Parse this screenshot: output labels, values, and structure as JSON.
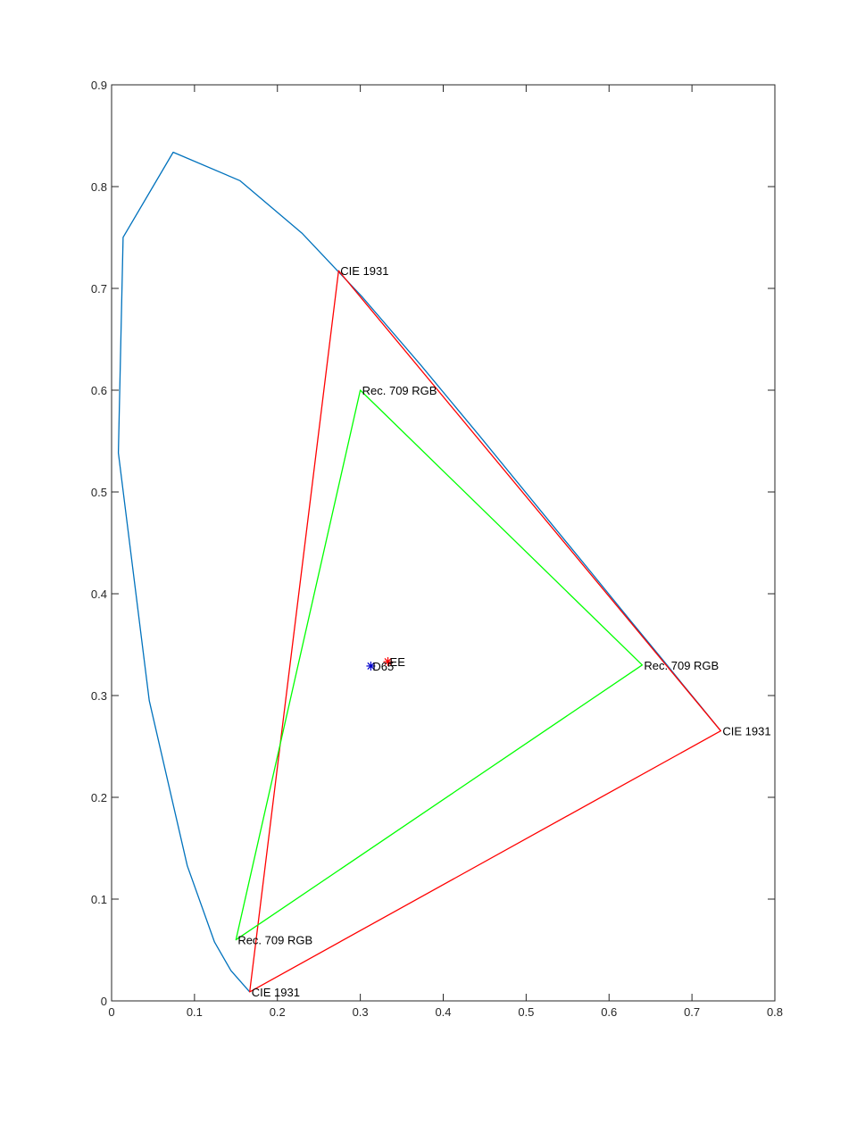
{
  "chart_data": {
    "type": "line",
    "title": "",
    "xlabel": "",
    "ylabel": "",
    "xlim": [
      0,
      0.8
    ],
    "ylim": [
      0,
      0.9
    ],
    "grid": false,
    "box": true,
    "x_ticks": [
      0,
      0.1,
      0.2,
      0.3,
      0.4,
      0.5,
      0.6,
      0.7,
      0.8
    ],
    "x_tick_labels": [
      "0",
      "0.1",
      "0.2",
      "0.3",
      "0.4",
      "0.5",
      "0.6",
      "0.7",
      "0.8"
    ],
    "y_ticks": [
      0,
      0.1,
      0.2,
      0.3,
      0.4,
      0.5,
      0.6,
      0.7,
      0.8,
      0.9
    ],
    "y_tick_labels": [
      "0",
      "0.1",
      "0.2",
      "0.3",
      "0.4",
      "0.5",
      "0.6",
      "0.7",
      "0.8",
      "0.9"
    ],
    "series": [
      {
        "color": "#0072BD",
        "closed": false,
        "x": [
          0.1666,
          0.144,
          0.1241,
          0.0913,
          0.0454,
          0.0082,
          0.0139,
          0.0743,
          0.1547,
          0.2296,
          0.3016,
          0.3731,
          0.4441,
          0.5125,
          0.5752,
          0.627,
          0.6658,
          0.6915,
          0.7079,
          0.7347
        ],
        "y": [
          0.0089,
          0.0297,
          0.0578,
          0.1327,
          0.295,
          0.5384,
          0.7502,
          0.8338,
          0.8059,
          0.7543,
          0.6923,
          0.6245,
          0.5547,
          0.4866,
          0.4242,
          0.3725,
          0.334,
          0.3083,
          0.292,
          0.2653
        ]
      },
      {
        "color": "#FF0000",
        "closed": true,
        "x": [
          0.7347,
          0.2738,
          0.1666
        ],
        "y": [
          0.2653,
          0.7174,
          0.0089
        ]
      },
      {
        "color": "#00FF00",
        "closed": true,
        "x": [
          0.64,
          0.3,
          0.15
        ],
        "y": [
          0.33,
          0.6,
          0.06
        ]
      }
    ],
    "points": [
      {
        "label": "D65",
        "x": 0.3127,
        "y": 0.329,
        "marker": "*",
        "color": "#0000CC"
      },
      {
        "label": "EE",
        "x": 0.3333,
        "y": 0.3333,
        "marker": "*",
        "color": "#FF0000"
      }
    ],
    "annotations": [
      {
        "text": "CIE 1931",
        "x": 0.7347,
        "y": 0.2653
      },
      {
        "text": "CIE 1931",
        "x": 0.2738,
        "y": 0.7174
      },
      {
        "text": "CIE 1931",
        "x": 0.1666,
        "y": 0.0089
      },
      {
        "text": "Rec. 709 RGB",
        "x": 0.64,
        "y": 0.33
      },
      {
        "text": "Rec. 709 RGB",
        "x": 0.3,
        "y": 0.6
      },
      {
        "text": "Rec. 709 RGB",
        "x": 0.15,
        "y": 0.06
      },
      {
        "text": "D65",
        "x": 0.3127,
        "y": 0.329
      },
      {
        "text": "EE",
        "x": 0.3333,
        "y": 0.3333
      }
    ]
  }
}
